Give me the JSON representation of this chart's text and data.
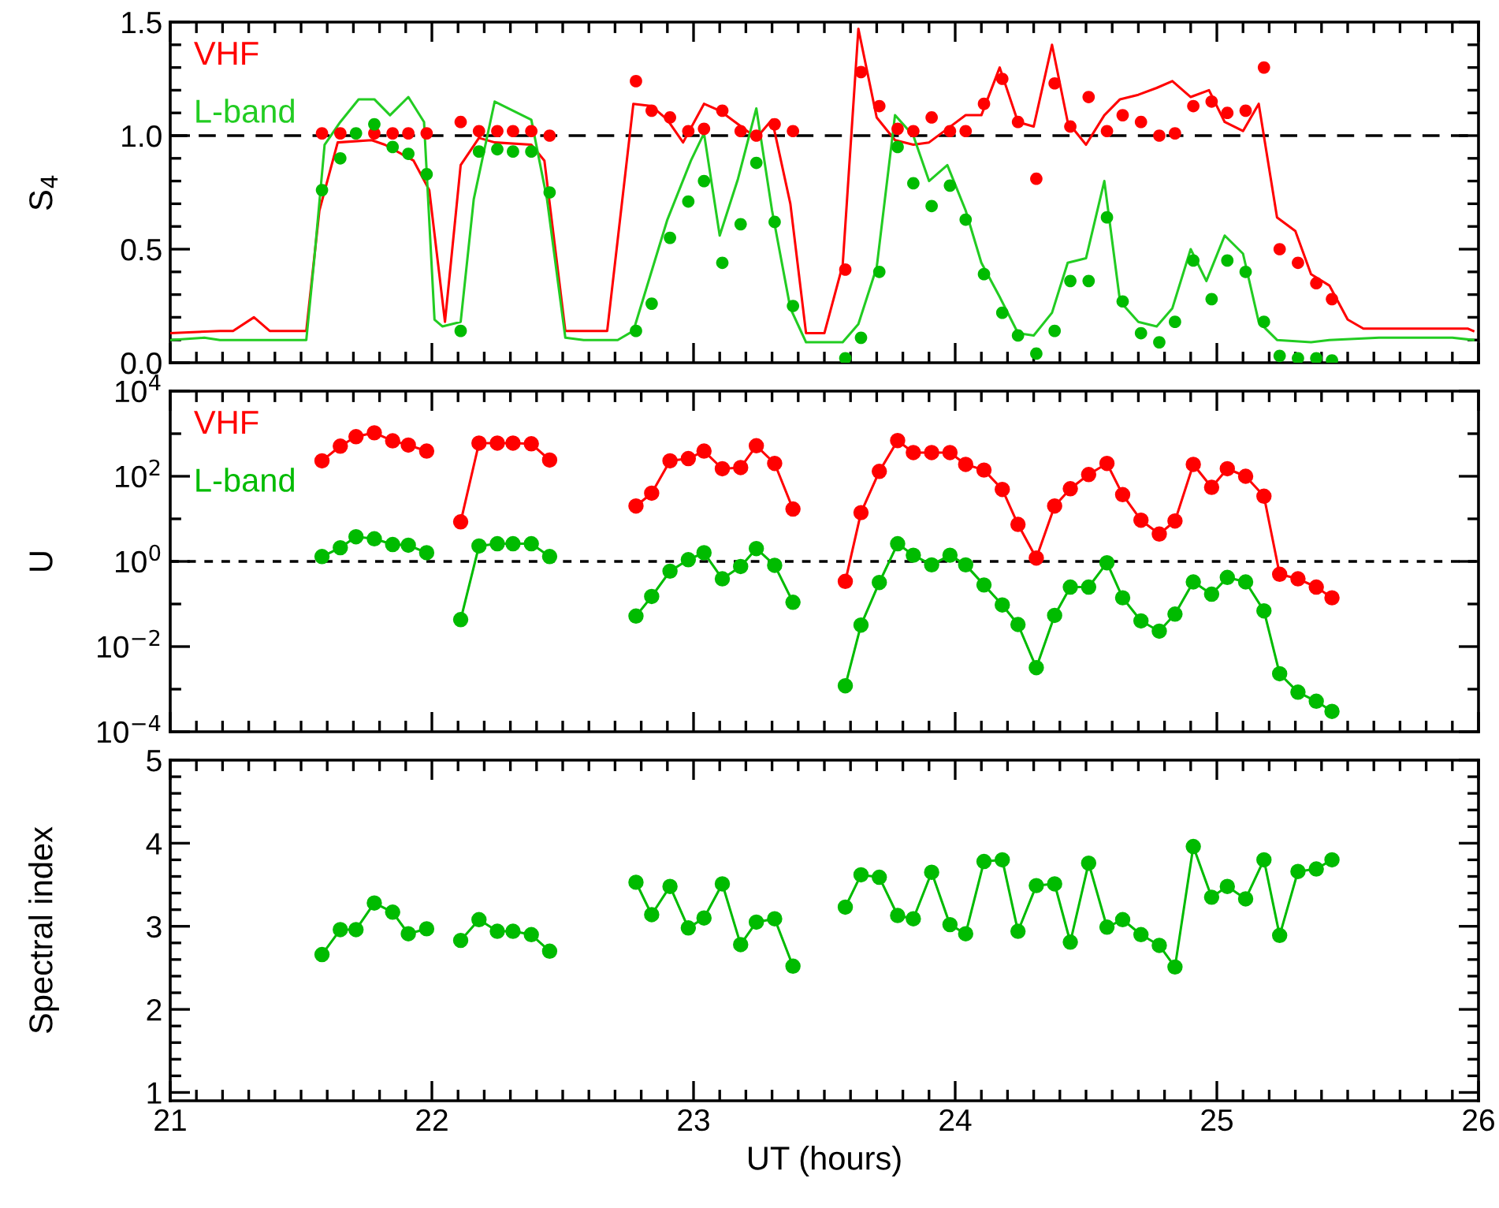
{
  "chart_data": [
    {
      "type": "line",
      "ylabel": "S$_{4}$",
      "xlim": [
        21,
        26
      ],
      "ylim": [
        0,
        1.5
      ],
      "tick_labels": "y",
      "legend": "top left",
      "xticks": [
        21,
        22,
        23,
        24,
        25,
        26,
        {
          "value": 21.1,
          "label": null
        },
        {
          "value": 21.2,
          "label": null
        },
        {
          "value": 21.3,
          "label": null
        },
        {
          "value": 21.4,
          "label": null
        },
        {
          "value": 21.5,
          "label": null
        },
        {
          "value": 21.6,
          "label": null
        },
        {
          "value": 21.7,
          "label": null
        },
        {
          "value": 21.8,
          "label": null
        },
        {
          "value": 21.9,
          "label": null
        },
        {
          "value": 22.1,
          "label": null
        },
        {
          "value": 22.2,
          "label": null
        },
        {
          "value": 22.3,
          "label": null
        },
        {
          "value": 22.4,
          "label": null
        },
        {
          "value": 22.5,
          "label": null
        },
        {
          "value": 22.6,
          "label": null
        },
        {
          "value": 22.7,
          "label": null
        },
        {
          "value": 22.8,
          "label": null
        },
        {
          "value": 22.9,
          "label": null
        },
        {
          "value": 23.1,
          "label": null
        },
        {
          "value": 23.2,
          "label": null
        },
        {
          "value": 23.3,
          "label": null
        },
        {
          "value": 23.4,
          "label": null
        },
        {
          "value": 23.5,
          "label": null
        },
        {
          "value": 23.6,
          "label": null
        },
        {
          "value": 23.7,
          "label": null
        },
        {
          "value": 23.8,
          "label": null
        },
        {
          "value": 23.9,
          "label": null
        },
        {
          "value": 24.1,
          "label": null
        },
        {
          "value": 24.2,
          "label": null
        },
        {
          "value": 24.3,
          "label": null
        },
        {
          "value": 24.4,
          "label": null
        },
        {
          "value": 24.5,
          "label": null
        },
        {
          "value": 24.6,
          "label": null
        },
        {
          "value": 24.7,
          "label": null
        },
        {
          "value": 24.8,
          "label": null
        },
        {
          "value": 24.9,
          "label": null
        },
        {
          "value": 25.1,
          "label": null
        },
        {
          "value": 25.2,
          "label": null
        },
        {
          "value": 25.3,
          "label": null
        },
        {
          "value": 25.4,
          "label": null
        },
        {
          "value": 25.5,
          "label": null
        },
        {
          "value": 25.6,
          "label": null
        },
        {
          "value": 25.7,
          "label": null
        },
        {
          "value": 25.8,
          "label": null
        },
        {
          "value": 25.9,
          "label": null
        }
      ],
      "yticks": [
        {
          "value": 0,
          "label": "0.0"
        },
        {
          "value": 0.5,
          "label": "0.5"
        },
        {
          "value": 1,
          "label": "1.0"
        },
        {
          "value": 1.5,
          "label": "1.5"
        },
        {
          "value": 0.1,
          "label": null
        },
        {
          "value": 0.2,
          "label": null
        },
        {
          "value": 0.3,
          "label": null
        },
        {
          "value": 0.4,
          "label": null
        },
        {
          "value": 0.6,
          "label": null
        },
        {
          "value": 0.7,
          "label": null
        },
        {
          "value": 0.8,
          "label": null
        },
        {
          "value": 0.9,
          "label": null
        },
        {
          "value": 1.1,
          "label": null
        },
        {
          "value": 1.2,
          "label": null
        },
        {
          "value": 1.3,
          "label": null
        },
        {
          "value": 1.4,
          "label": null
        }
      ],
      "ref_lines": [
        {
          "axis": "y",
          "value": 1,
          "color": "#000000",
          "line_style": "dashed"
        }
      ],
      "series": [
        {
          "name": "VHF",
          "type": "line",
          "color": "#ff0000",
          "x": [
            21.0,
            21.19,
            21.24,
            21.32,
            21.38,
            21.52,
            21.57,
            21.64,
            21.77,
            21.82,
            21.93,
            21.99,
            22.05,
            22.11,
            22.18,
            22.24,
            22.38,
            22.43,
            22.51,
            22.67,
            22.77,
            22.84,
            22.9,
            22.96,
            23.04,
            23.1,
            23.17,
            23.24,
            23.3,
            23.37,
            23.43,
            23.5,
            23.57,
            23.63,
            23.7,
            23.77,
            23.84,
            23.9,
            23.97,
            24.04,
            24.1,
            24.17,
            24.24,
            24.3,
            24.37,
            24.43,
            24.5,
            24.57,
            24.63,
            24.7,
            24.77,
            24.83,
            24.9,
            24.97,
            25.03,
            25.1,
            25.16,
            25.23,
            25.3,
            25.36,
            25.43,
            25.5,
            25.56,
            25.96,
            25.98
          ],
          "values": [
            0.13,
            0.14,
            0.14,
            0.2,
            0.14,
            0.14,
            0.67,
            0.97,
            0.98,
            0.96,
            0.89,
            0.76,
            0.18,
            0.87,
            0.99,
            0.97,
            0.96,
            0.89,
            0.14,
            0.14,
            1.14,
            1.13,
            1.07,
            0.97,
            1.14,
            1.11,
            1.05,
            0.99,
            1.07,
            0.7,
            0.13,
            0.13,
            0.43,
            1.47,
            1.08,
            0.98,
            0.96,
            0.97,
            1.03,
            1.09,
            1.09,
            1.3,
            1.06,
            1.04,
            1.4,
            1.06,
            0.96,
            1.09,
            1.16,
            1.18,
            1.21,
            1.24,
            1.17,
            1.2,
            1.06,
            1.02,
            1.14,
            0.64,
            0.58,
            0.39,
            0.34,
            0.19,
            0.15,
            0.15,
            0.14
          ]
        },
        {
          "name": "L-band",
          "type": "line",
          "color": "#22cc22",
          "x": [
            21.0,
            21.13,
            21.19,
            21.52,
            21.55,
            21.59,
            21.65,
            21.72,
            21.78,
            21.84,
            21.91,
            21.97,
            22.01,
            22.04,
            22.11,
            22.16,
            22.24,
            22.38,
            22.44,
            22.51,
            22.58,
            22.71,
            22.77,
            22.9,
            22.99,
            23.04,
            23.1,
            23.17,
            23.24,
            23.3,
            23.37,
            23.43,
            23.57,
            23.63,
            23.7,
            23.77,
            23.84,
            23.9,
            23.97,
            24.04,
            24.1,
            24.17,
            24.24,
            24.3,
            24.37,
            24.43,
            24.5,
            24.57,
            24.63,
            24.7,
            24.77,
            24.83,
            24.9,
            24.96,
            25.03,
            25.1,
            25.16,
            25.23,
            25.36,
            25.43,
            25.62,
            25.9,
            25.98
          ],
          "values": [
            0.1,
            0.11,
            0.1,
            0.1,
            0.45,
            0.96,
            1.06,
            1.16,
            1.16,
            1.09,
            1.17,
            1.06,
            0.19,
            0.16,
            0.18,
            0.72,
            1.15,
            1.07,
            0.72,
            0.11,
            0.1,
            0.1,
            0.14,
            0.63,
            0.89,
            1.01,
            0.56,
            0.81,
            1.12,
            0.67,
            0.24,
            0.09,
            0.09,
            0.17,
            0.42,
            1.09,
            1.0,
            0.8,
            0.87,
            0.67,
            0.44,
            0.29,
            0.13,
            0.12,
            0.22,
            0.44,
            0.46,
            0.8,
            0.27,
            0.18,
            0.16,
            0.24,
            0.5,
            0.36,
            0.56,
            0.48,
            0.18,
            0.1,
            0.09,
            0.1,
            0.11,
            0.11,
            0.1
          ]
        },
        {
          "type": "scatter",
          "marker": "circle",
          "color": "#ff0000",
          "x": [
            21.58,
            21.65,
            21.71,
            21.78,
            21.85,
            21.91,
            21.98,
            22.11,
            22.18,
            22.25,
            22.31,
            22.38,
            22.45,
            22.78,
            22.84,
            22.91,
            22.98,
            23.04,
            23.11,
            23.18,
            23.24,
            23.31,
            23.38,
            23.58,
            23.64,
            23.71,
            23.78,
            23.84,
            23.91,
            23.98,
            24.04,
            24.11,
            24.18,
            24.24,
            24.31,
            24.38,
            24.44,
            24.51,
            24.58,
            24.64,
            24.71,
            24.78,
            24.84,
            24.91,
            24.98,
            25.04,
            25.11,
            25.18,
            25.24,
            25.31,
            25.38,
            25.44
          ],
          "values": [
            1.01,
            1.01,
            null,
            1.01,
            1.01,
            1.01,
            1.01,
            1.06,
            1.02,
            1.02,
            1.02,
            1.02,
            1.0,
            1.24,
            1.11,
            1.08,
            1.02,
            1.03,
            1.11,
            1.02,
            1.0,
            1.05,
            1.02,
            0.41,
            1.28,
            1.13,
            1.03,
            1.02,
            1.08,
            1.02,
            1.02,
            1.14,
            1.25,
            1.06,
            0.81,
            1.23,
            1.04,
            1.17,
            1.02,
            1.09,
            1.06,
            1.0,
            1.01,
            1.13,
            1.15,
            1.1,
            1.11,
            1.3,
            0.5,
            0.44,
            0.35,
            0.28
          ]
        },
        {
          "type": "scatter",
          "marker": "circle",
          "color": "#00bb00",
          "x": [
            21.58,
            21.65,
            21.71,
            21.78,
            21.85,
            21.91,
            21.98,
            22.11,
            22.18,
            22.25,
            22.31,
            22.38,
            22.45,
            22.78,
            22.84,
            22.91,
            22.98,
            23.04,
            23.11,
            23.18,
            23.24,
            23.31,
            23.38,
            23.58,
            23.64,
            23.71,
            23.78,
            23.84,
            23.91,
            23.98,
            24.04,
            24.11,
            24.18,
            24.24,
            24.31,
            24.38,
            24.44,
            24.51,
            24.58,
            24.64,
            24.71,
            24.78,
            24.84,
            24.91,
            24.98,
            25.04,
            25.11,
            25.18,
            25.24,
            25.31,
            25.38,
            25.44
          ],
          "values": [
            0.76,
            0.9,
            1.01,
            1.05,
            0.95,
            0.92,
            0.83,
            0.14,
            0.93,
            0.94,
            0.93,
            0.93,
            0.75,
            0.14,
            0.26,
            0.55,
            0.71,
            0.8,
            0.44,
            0.61,
            0.88,
            0.62,
            0.25,
            0.02,
            0.11,
            0.4,
            0.95,
            0.79,
            0.69,
            0.78,
            0.63,
            0.39,
            0.22,
            0.12,
            0.04,
            0.14,
            0.36,
            0.36,
            0.64,
            0.27,
            0.13,
            0.09,
            0.18,
            0.45,
            0.28,
            0.45,
            0.4,
            0.18,
            0.03,
            0.02,
            0.02,
            0.01
          ]
        }
      ]
    },
    {
      "type": "line",
      "ylabel": "U",
      "xlim": [
        21,
        26
      ],
      "ylim": [
        0.0001,
        10000
      ],
      "log": "y",
      "tick_labels": "y",
      "legend": "top left",
      "marker": "circle",
      "xticks": [
        21,
        22,
        23,
        24,
        25,
        26,
        {
          "value": 21.1,
          "label": null
        },
        {
          "value": 21.2,
          "label": null
        },
        {
          "value": 21.3,
          "label": null
        },
        {
          "value": 21.4,
          "label": null
        },
        {
          "value": 21.5,
          "label": null
        },
        {
          "value": 21.6,
          "label": null
        },
        {
          "value": 21.7,
          "label": null
        },
        {
          "value": 21.8,
          "label": null
        },
        {
          "value": 21.9,
          "label": null
        },
        {
          "value": 22.1,
          "label": null
        },
        {
          "value": 22.2,
          "label": null
        },
        {
          "value": 22.3,
          "label": null
        },
        {
          "value": 22.4,
          "label": null
        },
        {
          "value": 22.5,
          "label": null
        },
        {
          "value": 22.6,
          "label": null
        },
        {
          "value": 22.7,
          "label": null
        },
        {
          "value": 22.8,
          "label": null
        },
        {
          "value": 22.9,
          "label": null
        },
        {
          "value": 23.1,
          "label": null
        },
        {
          "value": 23.2,
          "label": null
        },
        {
          "value": 23.3,
          "label": null
        },
        {
          "value": 23.4,
          "label": null
        },
        {
          "value": 23.5,
          "label": null
        },
        {
          "value": 23.6,
          "label": null
        },
        {
          "value": 23.7,
          "label": null
        },
        {
          "value": 23.8,
          "label": null
        },
        {
          "value": 23.9,
          "label": null
        },
        {
          "value": 24.1,
          "label": null
        },
        {
          "value": 24.2,
          "label": null
        },
        {
          "value": 24.3,
          "label": null
        },
        {
          "value": 24.4,
          "label": null
        },
        {
          "value": 24.5,
          "label": null
        },
        {
          "value": 24.6,
          "label": null
        },
        {
          "value": 24.7,
          "label": null
        },
        {
          "value": 24.8,
          "label": null
        },
        {
          "value": 24.9,
          "label": null
        },
        {
          "value": 25.1,
          "label": null
        },
        {
          "value": 25.2,
          "label": null
        },
        {
          "value": 25.3,
          "label": null
        },
        {
          "value": 25.4,
          "label": null
        },
        {
          "value": 25.5,
          "label": null
        },
        {
          "value": 25.6,
          "label": null
        },
        {
          "value": 25.7,
          "label": null
        },
        {
          "value": 25.8,
          "label": null
        },
        {
          "value": 25.9,
          "label": null
        }
      ],
      "yticks": [
        {
          "value": 0.0001,
          "label": "10$^{−4}$"
        },
        {
          "value": 0.01,
          "label": "10$^{−2}$"
        },
        {
          "value": 1,
          "label": "10$^{0}$"
        },
        {
          "value": 100,
          "label": "10$^{2}$"
        },
        {
          "value": 10000,
          "label": "10$^{4}$"
        },
        {
          "value": 0.001,
          "label": null
        },
        {
          "value": 0.1,
          "label": null
        },
        {
          "value": 10,
          "label": null
        },
        {
          "value": 1000,
          "label": null
        }
      ],
      "ref_lines": [
        {
          "axis": "y",
          "value": 1,
          "color": "#000000",
          "line_style": "dotted"
        }
      ],
      "series": [
        {
          "name": "VHF",
          "color": "#ff0000",
          "x": [
            21.58,
            21.65,
            21.71,
            21.78,
            21.85,
            21.91,
            21.98
          ],
          "values": [
            230,
            510,
            850,
            1050,
            680,
            540,
            390
          ]
        },
        {
          "color": "#ff0000",
          "x": [
            22.11,
            22.18,
            22.25,
            22.31,
            22.38,
            22.45
          ],
          "values": [
            8.5,
            600,
            600,
            600,
            580,
            240
          ]
        },
        {
          "color": "#ff0000",
          "x": [
            22.78,
            22.84,
            22.91,
            22.98,
            23.04,
            23.11,
            23.18,
            23.24,
            23.31,
            23.38
          ],
          "values": [
            20,
            40,
            230,
            260,
            390,
            150,
            160,
            520,
            200,
            17
          ]
        },
        {
          "color": "#ff0000",
          "x": [
            23.58,
            23.64,
            23.71,
            23.78,
            23.84,
            23.91,
            23.98,
            24.04,
            24.11,
            24.18,
            24.24,
            24.31,
            24.38,
            24.44,
            24.51,
            24.58,
            24.64,
            24.71,
            24.78,
            24.84,
            24.91,
            24.98,
            25.04,
            25.11,
            25.18,
            25.24,
            25.31,
            25.38,
            25.44
          ],
          "values": [
            0.34,
            14,
            130,
            690,
            360,
            360,
            360,
            190,
            140,
            49,
            7.4,
            1.2,
            20,
            51,
            110,
            200,
            37,
            9.3,
            4.4,
            8.9,
            190,
            55,
            150,
            100,
            34,
            0.5,
            0.39,
            0.25,
            0.14
          ]
        },
        {
          "name": "L-band",
          "color": "#00bb00",
          "x": [
            21.58,
            21.65,
            21.71,
            21.78,
            21.85,
            21.91,
            21.98
          ],
          "values": [
            1.3,
            2.1,
            3.8,
            3.4,
            2.5,
            2.4,
            1.6
          ]
        },
        {
          "color": "#00bb00",
          "x": [
            22.11,
            22.18,
            22.25,
            22.31,
            22.38,
            22.45
          ],
          "values": [
            0.043,
            2.3,
            2.6,
            2.6,
            2.6,
            1.3
          ]
        },
        {
          "color": "#00bb00",
          "x": [
            22.78,
            22.84,
            22.91,
            22.98,
            23.04,
            23.11,
            23.18,
            23.24,
            23.31,
            23.38
          ],
          "values": [
            0.052,
            0.15,
            0.59,
            1.1,
            1.6,
            0.39,
            0.76,
            2.0,
            0.81,
            0.11
          ]
        },
        {
          "color": "#00bb00",
          "x": [
            23.58,
            23.64,
            23.71,
            23.78,
            23.84,
            23.91,
            23.98,
            24.04,
            24.11,
            24.18,
            24.24,
            24.31,
            24.38,
            24.44,
            24.51,
            24.58,
            24.64,
            24.71,
            24.78,
            24.84,
            24.91,
            24.98,
            25.04,
            25.11,
            25.18,
            25.24,
            25.31,
            25.38,
            25.44
          ],
          "values": [
            0.0012,
            0.032,
            0.32,
            2.6,
            1.4,
            0.83,
            1.4,
            0.83,
            0.28,
            0.095,
            0.033,
            0.0032,
            0.054,
            0.25,
            0.25,
            0.93,
            0.14,
            0.04,
            0.023,
            0.058,
            0.33,
            0.17,
            0.42,
            0.33,
            0.069,
            0.0023,
            0.00085,
            0.00052,
            0.0003
          ]
        }
      ]
    },
    {
      "type": "line",
      "ylabel": "Spectral index",
      "xlabel": "UT (hours)",
      "xlim": [
        21,
        26
      ],
      "ylim": [
        0.9,
        5
      ],
      "marker": "circle",
      "xticks": [
        21,
        22,
        23,
        24,
        25,
        26,
        {
          "value": 21.1,
          "label": null
        },
        {
          "value": 21.2,
          "label": null
        },
        {
          "value": 21.3,
          "label": null
        },
        {
          "value": 21.4,
          "label": null
        },
        {
          "value": 21.5,
          "label": null
        },
        {
          "value": 21.6,
          "label": null
        },
        {
          "value": 21.7,
          "label": null
        },
        {
          "value": 21.8,
          "label": null
        },
        {
          "value": 21.9,
          "label": null
        },
        {
          "value": 22.1,
          "label": null
        },
        {
          "value": 22.2,
          "label": null
        },
        {
          "value": 22.3,
          "label": null
        },
        {
          "value": 22.4,
          "label": null
        },
        {
          "value": 22.5,
          "label": null
        },
        {
          "value": 22.6,
          "label": null
        },
        {
          "value": 22.7,
          "label": null
        },
        {
          "value": 22.8,
          "label": null
        },
        {
          "value": 22.9,
          "label": null
        },
        {
          "value": 23.1,
          "label": null
        },
        {
          "value": 23.2,
          "label": null
        },
        {
          "value": 23.3,
          "label": null
        },
        {
          "value": 23.4,
          "label": null
        },
        {
          "value": 23.5,
          "label": null
        },
        {
          "value": 23.6,
          "label": null
        },
        {
          "value": 23.7,
          "label": null
        },
        {
          "value": 23.8,
          "label": null
        },
        {
          "value": 23.9,
          "label": null
        },
        {
          "value": 24.1,
          "label": null
        },
        {
          "value": 24.2,
          "label": null
        },
        {
          "value": 24.3,
          "label": null
        },
        {
          "value": 24.4,
          "label": null
        },
        {
          "value": 24.5,
          "label": null
        },
        {
          "value": 24.6,
          "label": null
        },
        {
          "value": 24.7,
          "label": null
        },
        {
          "value": 24.8,
          "label": null
        },
        {
          "value": 24.9,
          "label": null
        },
        {
          "value": 25.1,
          "label": null
        },
        {
          "value": 25.2,
          "label": null
        },
        {
          "value": 25.3,
          "label": null
        },
        {
          "value": 25.4,
          "label": null
        },
        {
          "value": 25.5,
          "label": null
        },
        {
          "value": 25.6,
          "label": null
        },
        {
          "value": 25.7,
          "label": null
        },
        {
          "value": 25.8,
          "label": null
        },
        {
          "value": 25.9,
          "label": null
        }
      ],
      "yticks": [
        1,
        2,
        3,
        4,
        5,
        {
          "value": 1.2,
          "label": null
        },
        {
          "value": 1.4,
          "label": null
        },
        {
          "value": 1.6,
          "label": null
        },
        {
          "value": 1.8,
          "label": null
        },
        {
          "value": 2.2,
          "label": null
        },
        {
          "value": 2.4,
          "label": null
        },
        {
          "value": 2.6,
          "label": null
        },
        {
          "value": 2.8,
          "label": null
        },
        {
          "value": 3.2,
          "label": null
        },
        {
          "value": 3.4,
          "label": null
        },
        {
          "value": 3.6,
          "label": null
        },
        {
          "value": 3.8,
          "label": null
        },
        {
          "value": 4.2,
          "label": null
        },
        {
          "value": 4.4,
          "label": null
        },
        {
          "value": 4.6,
          "label": null
        },
        {
          "value": 4.8,
          "label": null
        }
      ],
      "series": [
        {
          "color": "#00bb00",
          "x": [
            21.58,
            21.65,
            21.71,
            21.78,
            21.85,
            21.91,
            21.98
          ],
          "values": [
            2.66,
            2.96,
            2.96,
            3.28,
            3.17,
            2.91,
            2.97
          ]
        },
        {
          "color": "#00bb00",
          "x": [
            22.11,
            22.18,
            22.25,
            22.31,
            22.38,
            22.45
          ],
          "values": [
            2.83,
            3.08,
            2.94,
            2.94,
            2.9,
            2.7
          ]
        },
        {
          "color": "#00bb00",
          "x": [
            22.78,
            22.84,
            22.91,
            22.98,
            23.04,
            23.11,
            23.18,
            23.24,
            23.31,
            23.38
          ],
          "values": [
            3.53,
            3.14,
            3.48,
            2.98,
            3.1,
            3.51,
            2.78,
            3.05,
            3.09,
            2.52
          ]
        },
        {
          "color": "#00bb00",
          "x": [
            23.58,
            23.64,
            23.71,
            23.78,
            23.84,
            23.91,
            23.98,
            24.04,
            24.11,
            24.18,
            24.24,
            24.31,
            24.38,
            24.44,
            24.51,
            24.58,
            24.64,
            24.71,
            24.78,
            24.84,
            24.91,
            24.98,
            25.04,
            25.11,
            25.18,
            25.24,
            25.31,
            25.38,
            25.44
          ],
          "values": [
            3.23,
            3.62,
            3.59,
            3.13,
            3.09,
            3.65,
            3.02,
            2.91,
            3.78,
            3.8,
            2.94,
            3.49,
            3.51,
            2.81,
            3.76,
            2.99,
            3.08,
            2.9,
            2.77,
            2.51,
            3.96,
            3.35,
            3.48,
            3.33,
            3.8,
            2.89,
            3.66,
            3.69,
            3.8
          ]
        }
      ]
    }
  ]
}
